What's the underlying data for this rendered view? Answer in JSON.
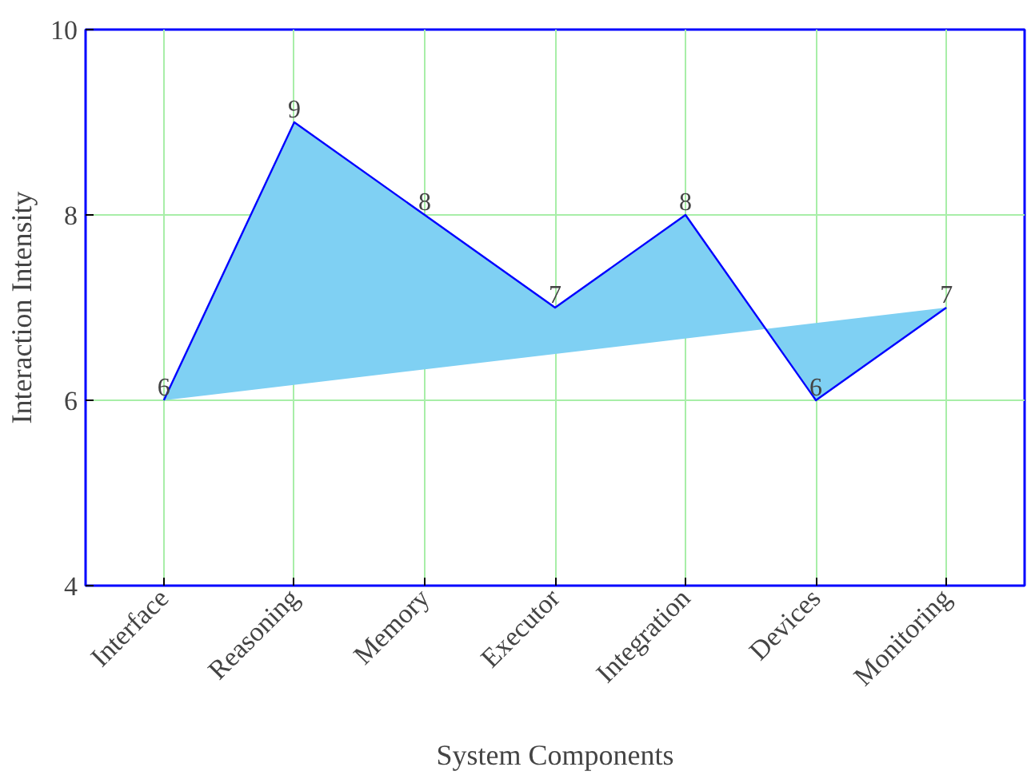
{
  "chart_data": {
    "type": "area",
    "xlabel": "System Components",
    "ylabel": "Interaction Intensity",
    "categories": [
      "Interface",
      "Reasoning",
      "Memory",
      "Executor",
      "Integration",
      "Devices",
      "Monitoring"
    ],
    "series": [
      {
        "color": "#7fd0f3",
        "values": [
          6,
          9,
          8,
          7,
          8,
          6,
          7
        ]
      }
    ],
    "ylim": [
      4,
      10
    ],
    "yticks": [
      4,
      6,
      8,
      10
    ],
    "grid": true,
    "data_labels": true
  }
}
